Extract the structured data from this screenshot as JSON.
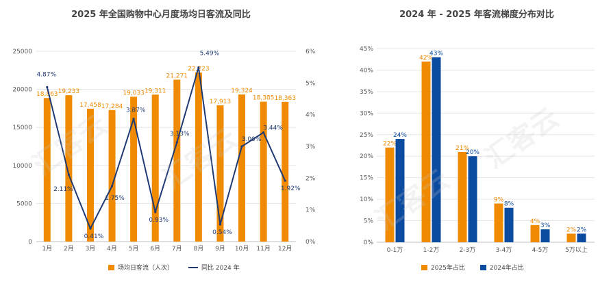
{
  "colors": {
    "orange": "#F08A00",
    "navy": "#1F3A73",
    "blue": "#0B4BA0",
    "grid": "#E6E6E6",
    "axis": "#BFBFBF"
  },
  "watermark": "汇客云",
  "chart_data": [
    {
      "type": "bar",
      "title": "2025 年全国购物中心月度场均日客流及同比",
      "categories": [
        "1月",
        "2月",
        "3月",
        "4月",
        "5月",
        "6月",
        "7月",
        "8月",
        "9月",
        "10月",
        "11月",
        "12月"
      ],
      "series": [
        {
          "name": "场均日客流（人次）",
          "type": "bar",
          "axis": "left",
          "values": [
            18863,
            19233,
            17458,
            17284,
            19033,
            19311,
            21271,
            22223,
            17913,
            19324,
            18385,
            18363
          ],
          "labels": [
            "18,863",
            "19,233",
            "17,458",
            "17,284",
            "19,033",
            "19,311",
            "21,271",
            "22,223",
            "17,913",
            "19,324",
            "18,385",
            "18,363"
          ]
        },
        {
          "name": "同比 2024 年",
          "type": "line",
          "axis": "right",
          "values": [
            4.87,
            2.11,
            0.41,
            1.75,
            3.87,
            0.93,
            3.13,
            5.49,
            0.54,
            3.0,
            3.44,
            1.92
          ],
          "labels": [
            "4.87%",
            "2.11%",
            "0.41%",
            "1.75%",
            "3.87%",
            "0.93%",
            "3.13%",
            "5.49%",
            "0.54%",
            "3.00%",
            "3.44%",
            "1.92%"
          ]
        }
      ],
      "ylim_left": [
        0,
        25000
      ],
      "yticks_left": [
        "0",
        "5000",
        "10000",
        "15000",
        "20000",
        "25000"
      ],
      "ylim_right": [
        0,
        6
      ],
      "yticks_right": [
        "0%",
        "1%",
        "2%",
        "3%",
        "4%",
        "5%",
        "6%"
      ],
      "legend_position": "bottom"
    },
    {
      "type": "bar",
      "title": "2024 年 - 2025 年客流梯度分布对比",
      "categories": [
        "0-1万",
        "1-2万",
        "2-3万",
        "3-4万",
        "4-5万",
        "5万以上"
      ],
      "series": [
        {
          "name": "2025年占比",
          "values": [
            22,
            42,
            21,
            9,
            4,
            2
          ],
          "labels": [
            "22%",
            "42%",
            "21%",
            "9%",
            "4%",
            "2%"
          ]
        },
        {
          "name": "2024年占比",
          "values": [
            24,
            43,
            20,
            8,
            3,
            2
          ],
          "labels": [
            "24%",
            "43%",
            "20%",
            "8%",
            "3%",
            "2%"
          ]
        }
      ],
      "ylim": [
        0,
        45
      ],
      "yticks": [
        "0%",
        "5%",
        "10%",
        "15%",
        "20%",
        "25%",
        "30%",
        "35%",
        "40%",
        "45%"
      ],
      "legend_position": "bottom"
    }
  ]
}
